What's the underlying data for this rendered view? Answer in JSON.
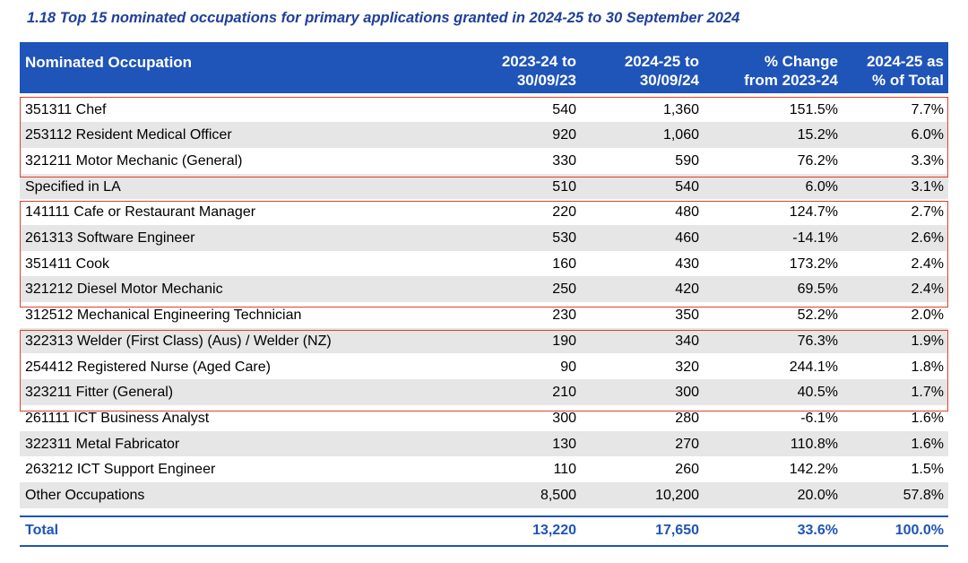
{
  "title": "1.18 Top 15 nominated occupations for primary applications granted in 2024-25 to 30 September 2024",
  "table": {
    "header": [
      "Nominated Occupation",
      "2023-24 to\n30/09/23",
      "2024-25 to\n30/09/24",
      "% Change\nfrom 2023-24",
      "2024-25 as\n% of Total"
    ],
    "rows": [
      [
        "351311 Chef",
        "540",
        "1,360",
        "151.5%",
        "7.7%"
      ],
      [
        "253112 Resident Medical Officer",
        "920",
        "1,060",
        "15.2%",
        "6.0%"
      ],
      [
        "321211 Motor Mechanic (General)",
        "330",
        "590",
        "76.2%",
        "3.3%"
      ],
      [
        "Specified in LA",
        "510",
        "540",
        "6.0%",
        "3.1%"
      ],
      [
        "141111 Cafe or Restaurant Manager",
        "220",
        "480",
        "124.7%",
        "2.7%"
      ],
      [
        "261313 Software Engineer",
        "530",
        "460",
        "-14.1%",
        "2.6%"
      ],
      [
        "351411 Cook",
        "160",
        "430",
        "173.2%",
        "2.4%"
      ],
      [
        "321212 Diesel Motor Mechanic",
        "250",
        "420",
        "69.5%",
        "2.4%"
      ],
      [
        "312512 Mechanical Engineering Technician",
        "230",
        "350",
        "52.2%",
        "2.0%"
      ],
      [
        "322313 Welder (First Class) (Aus) / Welder (NZ)",
        "190",
        "340",
        "76.3%",
        "1.9%"
      ],
      [
        "254412 Registered Nurse (Aged Care)",
        "90",
        "320",
        "244.1%",
        "1.8%"
      ],
      [
        "323211 Fitter (General)",
        "210",
        "300",
        "40.5%",
        "1.7%"
      ],
      [
        "261111 ICT Business Analyst",
        "300",
        "280",
        "-6.1%",
        "1.6%"
      ],
      [
        "322311 Metal Fabricator",
        "130",
        "270",
        "110.8%",
        "1.6%"
      ],
      [
        "263212 ICT Support Engineer",
        "110",
        "260",
        "142.2%",
        "1.5%"
      ],
      [
        "Other Occupations",
        "8,500",
        "10,200",
        "20.0%",
        "57.8%"
      ]
    ],
    "total": [
      "Total",
      "13,220",
      "17,650",
      "33.6%",
      "100.0%"
    ]
  }
}
